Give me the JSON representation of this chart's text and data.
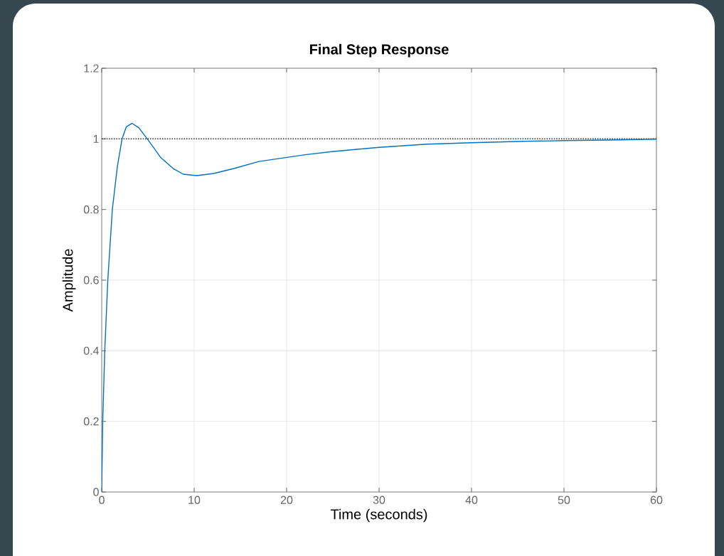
{
  "chart_data": {
    "type": "line",
    "title": "Final Step Response",
    "xlabel": "Time (seconds)",
    "ylabel": "Amplitude",
    "series": [
      {
        "color": "#0072bd",
        "x": [
          0,
          0.11,
          0.33,
          0.66,
          1.15,
          1.7,
          2.2,
          2.66,
          3.29,
          4.03,
          4.93,
          6.36,
          7.73,
          8.82,
          10.3,
          12.1,
          14.3,
          17.0,
          19.9,
          22,
          24.9,
          30,
          35.2,
          40,
          45.6,
          50,
          56,
          60
        ],
        "values": [
          0,
          0.2,
          0.4,
          0.6,
          0.8,
          0.923,
          1.0,
          1.034,
          1.044,
          1.031,
          1.0,
          0.948,
          0.916,
          0.9,
          0.896,
          0.902,
          0.916,
          0.936,
          0.947,
          0.955,
          0.964,
          0.976,
          0.985,
          0.989,
          0.993,
          0.995,
          0.997,
          0.999
        ]
      }
    ],
    "xlim": [
      0,
      60
    ],
    "xticks": [
      0,
      10,
      20,
      30,
      40,
      50,
      60
    ],
    "ylim": [
      0,
      1.2
    ],
    "yticks": [
      0,
      {
        "value": 0.2,
        "label": "0.2"
      },
      {
        "value": 0.4,
        "label": "0.4"
      },
      {
        "value": 0.6,
        "label": "0.6"
      },
      {
        "value": 0.8,
        "label": "0.8"
      },
      1,
      {
        "value": 1.2,
        "label": "1.2"
      }
    ],
    "ref_lines": [
      {
        "axis": "y",
        "value": 1,
        "color": "#262626",
        "line_style": "dotted"
      }
    ],
    "grid": true,
    "line_style": "solid"
  }
}
